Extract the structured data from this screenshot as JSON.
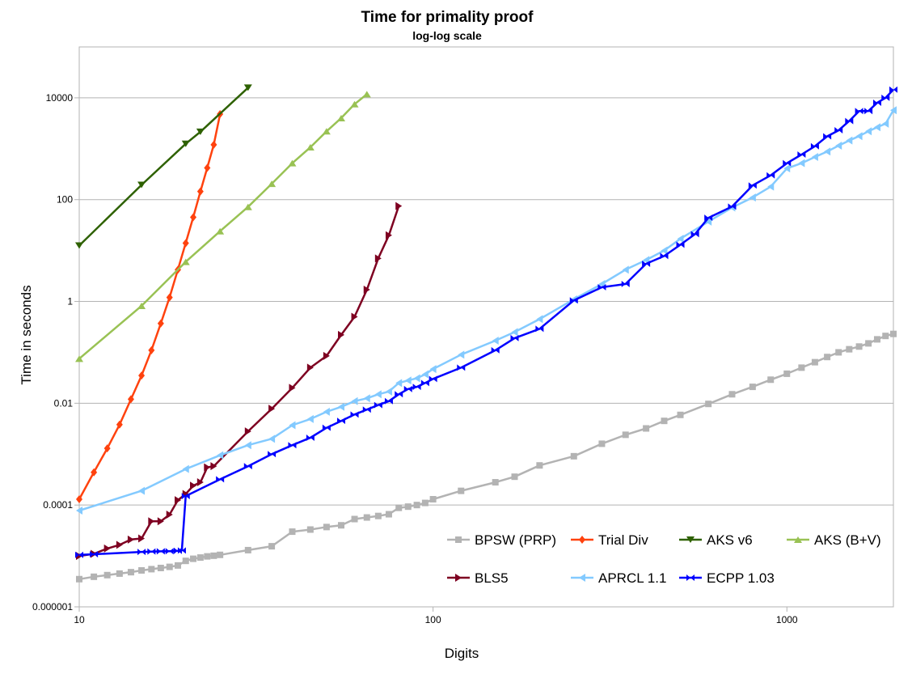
{
  "chart_data": {
    "type": "line",
    "title": "Time for primality proof",
    "subtitle": "log-log scale",
    "xlabel": "Digits",
    "ylabel": "Time in seconds",
    "x_scale": "log",
    "y_scale": "log",
    "xlim": [
      10,
      2000
    ],
    "ylim": [
      1e-06,
      100000
    ],
    "x_ticks": [
      10,
      100,
      1000
    ],
    "x_tick_labels": [
      "10",
      "100",
      "1000"
    ],
    "y_ticks": [
      1e-06,
      0.0001,
      0.01,
      1,
      100,
      10000
    ],
    "y_tick_labels": [
      "0.000001",
      "0.0001",
      "0.01",
      "1",
      "100",
      "10000"
    ],
    "grid": "horizontal",
    "legend_position": "bottom-right",
    "series": [
      {
        "name": "BPSW (PRP)",
        "color": "#b3b3b3",
        "marker": "square",
        "points": [
          [
            10,
            3.5e-06
          ],
          [
            11,
            3.9e-06
          ],
          [
            12,
            4.2e-06
          ],
          [
            13,
            4.5e-06
          ],
          [
            14,
            4.8e-06
          ],
          [
            15,
            5.2e-06
          ],
          [
            16,
            5.5e-06
          ],
          [
            17,
            5.8e-06
          ],
          [
            18,
            6.1e-06
          ],
          [
            19,
            6.5e-06
          ],
          [
            20,
            8e-06
          ],
          [
            21,
            8.8e-06
          ],
          [
            22,
            9.3e-06
          ],
          [
            23,
            9.8e-06
          ],
          [
            24,
            1.01e-05
          ],
          [
            25,
            1.05e-05
          ],
          [
            30,
            1.3e-05
          ],
          [
            35,
            1.55e-05
          ],
          [
            40,
            3e-05
          ],
          [
            45,
            3.3e-05
          ],
          [
            50,
            3.7e-05
          ],
          [
            55,
            4e-05
          ],
          [
            60,
            5.3e-05
          ],
          [
            65,
            5.7e-05
          ],
          [
            70,
            6.1e-05
          ],
          [
            75,
            6.6e-05
          ],
          [
            80,
            8.8e-05
          ],
          [
            85,
            9.3e-05
          ],
          [
            90,
            0.0001
          ],
          [
            95,
            0.00011
          ],
          [
            100,
            0.00013
          ],
          [
            120,
            0.00019
          ],
          [
            150,
            0.00028
          ],
          [
            170,
            0.00036
          ],
          [
            200,
            0.0006
          ],
          [
            250,
            0.00091
          ],
          [
            300,
            0.0016
          ],
          [
            350,
            0.0024
          ],
          [
            400,
            0.0032
          ],
          [
            450,
            0.0045
          ],
          [
            500,
            0.0059
          ],
          [
            600,
            0.0097
          ],
          [
            700,
            0.015
          ],
          [
            800,
            0.021
          ],
          [
            900,
            0.029
          ],
          [
            1000,
            0.038
          ],
          [
            1100,
            0.05
          ],
          [
            1200,
            0.064
          ],
          [
            1300,
            0.081
          ],
          [
            1400,
            0.1
          ],
          [
            1500,
            0.115
          ],
          [
            1600,
            0.13
          ],
          [
            1700,
            0.15
          ],
          [
            1800,
            0.18
          ],
          [
            1900,
            0.21
          ],
          [
            2000,
            0.23
          ]
        ]
      },
      {
        "name": "Trial Div",
        "color": "#ff420e",
        "marker": "diamond",
        "points": [
          [
            10,
            0.00013
          ],
          [
            11,
            0.00044
          ],
          [
            12,
            0.0013
          ],
          [
            13,
            0.0038
          ],
          [
            14,
            0.012
          ],
          [
            15,
            0.035
          ],
          [
            16,
            0.11
          ],
          [
            17,
            0.37
          ],
          [
            18,
            1.2
          ],
          [
            19,
            4.2
          ],
          [
            20,
            14
          ],
          [
            21,
            45
          ],
          [
            22,
            145
          ],
          [
            23,
            420
          ],
          [
            24,
            1200
          ],
          [
            25,
            4800
          ]
        ]
      },
      {
        "name": "AKS v6",
        "color": "#2e6100",
        "marker": "triangle-down",
        "points": [
          [
            10,
            12.5
          ],
          [
            15,
            195
          ],
          [
            20,
            1250
          ],
          [
            22,
            2150
          ],
          [
            30,
            15800
          ]
        ]
      },
      {
        "name": "AKS (B+V)",
        "color": "#99c254",
        "marker": "triangle-up",
        "points": [
          [
            10,
            0.075
          ],
          [
            15,
            0.82
          ],
          [
            20,
            6
          ],
          [
            25,
            24
          ],
          [
            30,
            72
          ],
          [
            35,
            205
          ],
          [
            40,
            520
          ],
          [
            45,
            1070
          ],
          [
            50,
            2200
          ],
          [
            55,
            4000
          ],
          [
            60,
            7500
          ],
          [
            65,
            11800
          ]
        ]
      },
      {
        "name": "BLS5",
        "color": "#7e0021",
        "marker": "triangle-right",
        "points": [
          [
            10,
            1e-05
          ],
          [
            11,
            1.1e-05
          ],
          [
            12,
            1.4e-05
          ],
          [
            13,
            1.65e-05
          ],
          [
            14,
            2.1e-05
          ],
          [
            15,
            2.2e-05
          ],
          [
            16,
            4.8e-05
          ],
          [
            17,
            4.8e-05
          ],
          [
            18,
            6.5e-05
          ],
          [
            19,
            0.000125
          ],
          [
            20,
            0.000165
          ],
          [
            21,
            0.00024
          ],
          [
            22,
            0.00028
          ],
          [
            23,
            0.00055
          ],
          [
            24,
            0.00058
          ],
          [
            30,
            0.0028
          ],
          [
            35,
            0.0078
          ],
          [
            40,
            0.02
          ],
          [
            45,
            0.05
          ],
          [
            50,
            0.085
          ],
          [
            55,
            0.22
          ],
          [
            60,
            0.5
          ],
          [
            65,
            1.7
          ],
          [
            70,
            7
          ],
          [
            75,
            20
          ],
          [
            80,
            75
          ]
        ]
      },
      {
        "name": "APRCL 1.1",
        "color": "#83caff",
        "marker": "triangle-left",
        "points": [
          [
            10,
            7.8e-05
          ],
          [
            15,
            0.00019
          ],
          [
            20,
            0.00051
          ],
          [
            25,
            0.00095
          ],
          [
            30,
            0.0015
          ],
          [
            35,
            0.002
          ],
          [
            40,
            0.0037
          ],
          [
            45,
            0.0049
          ],
          [
            50,
            0.0068
          ],
          [
            55,
            0.0085
          ],
          [
            60,
            0.011
          ],
          [
            65,
            0.0125
          ],
          [
            70,
            0.015
          ],
          [
            75,
            0.017
          ],
          [
            80,
            0.025
          ],
          [
            85,
            0.028
          ],
          [
            90,
            0.031
          ],
          [
            95,
            0.037
          ],
          [
            100,
            0.047
          ],
          [
            120,
            0.09
          ],
          [
            150,
            0.17
          ],
          [
            170,
            0.25
          ],
          [
            200,
            0.45
          ],
          [
            250,
            1.1
          ],
          [
            300,
            2.2
          ],
          [
            350,
            4.2
          ],
          [
            400,
            6.5
          ],
          [
            450,
            10
          ],
          [
            500,
            17
          ],
          [
            600,
            37
          ],
          [
            700,
            70
          ],
          [
            800,
            110
          ],
          [
            900,
            180
          ],
          [
            1000,
            410
          ],
          [
            1100,
            520
          ],
          [
            1200,
            690
          ],
          [
            1300,
            880
          ],
          [
            1400,
            1150
          ],
          [
            1500,
            1450
          ],
          [
            1600,
            1770
          ],
          [
            1700,
            2200
          ],
          [
            1800,
            2650
          ],
          [
            1900,
            3100
          ],
          [
            2000,
            5700
          ]
        ]
      },
      {
        "name": "ECPP 1.03",
        "color": "#0000ff",
        "marker": "bowtie",
        "points": [
          [
            10,
            1.05e-05
          ],
          [
            11,
            1.08e-05
          ],
          [
            15,
            1.2e-05
          ],
          [
            16,
            1.22e-05
          ],
          [
            17,
            1.23e-05
          ],
          [
            18,
            1.24e-05
          ],
          [
            19,
            1.26e-05
          ],
          [
            19.5,
            1.28e-05
          ],
          [
            20,
            0.00015
          ],
          [
            25,
            0.00032
          ],
          [
            30,
            0.00058
          ],
          [
            35,
            0.001
          ],
          [
            40,
            0.0015
          ],
          [
            45,
            0.0021
          ],
          [
            50,
            0.0033
          ],
          [
            55,
            0.0045
          ],
          [
            60,
            0.006
          ],
          [
            65,
            0.0075
          ],
          [
            70,
            0.0092
          ],
          [
            75,
            0.011
          ],
          [
            80,
            0.015
          ],
          [
            85,
            0.019
          ],
          [
            90,
            0.021
          ],
          [
            95,
            0.025
          ],
          [
            100,
            0.03
          ],
          [
            120,
            0.05
          ],
          [
            150,
            0.11
          ],
          [
            170,
            0.19
          ],
          [
            200,
            0.29
          ],
          [
            250,
            1.05
          ],
          [
            300,
            1.9
          ],
          [
            350,
            2.2
          ],
          [
            400,
            5.5
          ],
          [
            450,
            7.8
          ],
          [
            500,
            13
          ],
          [
            550,
            21
          ],
          [
            600,
            44
          ],
          [
            700,
            73
          ],
          [
            800,
            190
          ],
          [
            900,
            300
          ],
          [
            1000,
            520
          ],
          [
            1100,
            770
          ],
          [
            1200,
            1120
          ],
          [
            1300,
            1750
          ],
          [
            1400,
            2300
          ],
          [
            1500,
            3500
          ],
          [
            1600,
            5500
          ],
          [
            1700,
            5500
          ],
          [
            1800,
            8000
          ],
          [
            1900,
            10000
          ],
          [
            2000,
            14500
          ]
        ]
      }
    ]
  }
}
